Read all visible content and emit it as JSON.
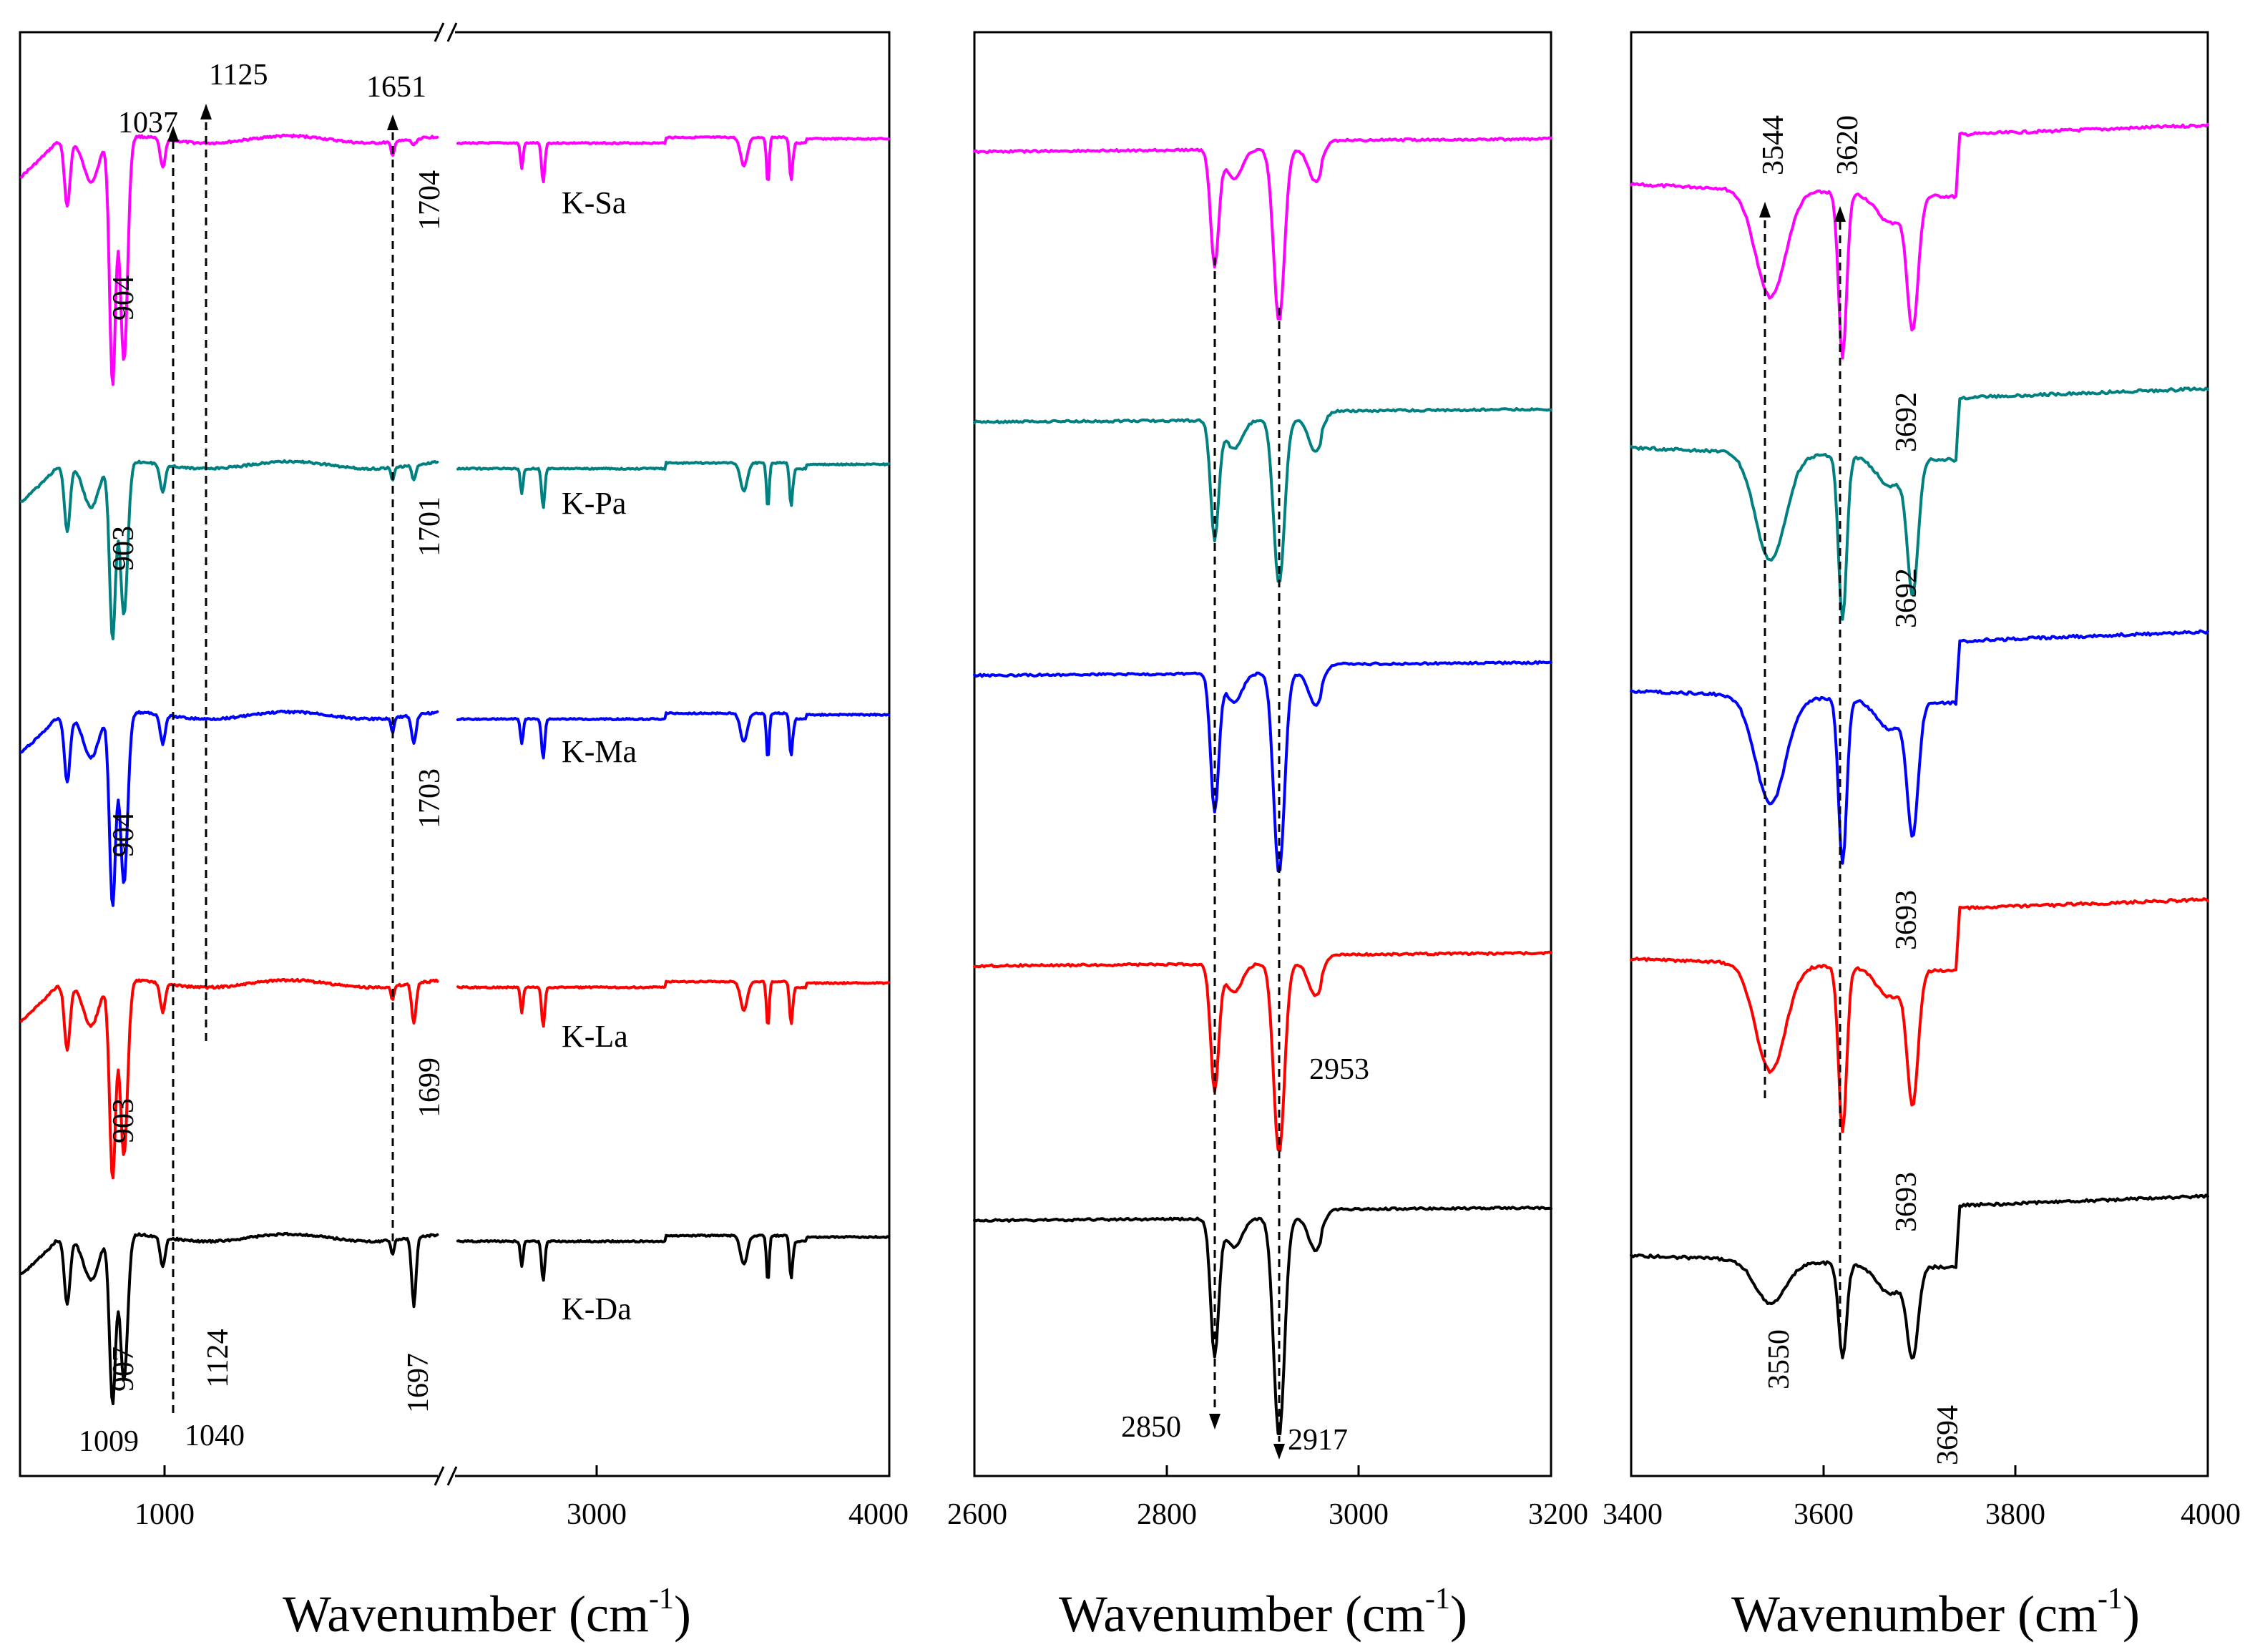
{
  "chart_data": {
    "type": "line",
    "description_units": "FTIR transmittance (arbitrary, vertically offset per sample)",
    "samples": [
      {
        "name": "K-Sa",
        "color": "#ff00ff"
      },
      {
        "name": "K-Pa",
        "color": "#008080"
      },
      {
        "name": "K-Ma",
        "color": "#0000ff"
      },
      {
        "name": "K-La",
        "color": "#ff0000"
      },
      {
        "name": "K-Da",
        "color": "#000000"
      }
    ],
    "panels": [
      {
        "id": "full",
        "xlabel": "Wavenumber (cm",
        "xlabel_sup": "-1",
        "xlabel_close": ")",
        "xlim": [
          800,
          4000
        ],
        "axis_break": [
          1750,
          2650
        ],
        "ticks": [
          "1000",
          "3000",
          "4000"
        ],
        "peak_labels": [
          {
            "text": "904",
            "sample": "K-Sa"
          },
          {
            "text": "1704",
            "sample": "K-Sa"
          },
          {
            "text": "903",
            "sample": "K-Pa"
          },
          {
            "text": "1701",
            "sample": "K-Pa"
          },
          {
            "text": "904",
            "sample": "K-Ma"
          },
          {
            "text": "1703",
            "sample": "K-Ma"
          },
          {
            "text": "903",
            "sample": "K-La"
          },
          {
            "text": "1699",
            "sample": "K-La"
          },
          {
            "text": "907",
            "sample": "K-Da"
          },
          {
            "text": "1124",
            "sample": "K-Da"
          },
          {
            "text": "1697",
            "sample": "K-Da"
          },
          {
            "text": "1009",
            "sample": "K-Da"
          },
          {
            "text": "1040",
            "sample": "K-Da"
          }
        ],
        "guide_labels": [
          "1037",
          "1125",
          "1651"
        ]
      },
      {
        "id": "ch",
        "xlabel": "Wavenumber (cm",
        "xlabel_sup": "-1",
        "xlabel_close": ")",
        "xlim": [
          2600,
          3200
        ],
        "ticks": [
          "2600",
          "2800",
          "3000",
          "3200"
        ],
        "peak_labels": [
          {
            "text": "2953",
            "sample": "K-La"
          },
          {
            "text": "2850",
            "sample": "K-Da"
          },
          {
            "text": "2917",
            "sample": "K-Da"
          }
        ]
      },
      {
        "id": "oh",
        "xlabel": "Wavenumber (cm",
        "xlabel_sup": "-1",
        "xlabel_close": ")",
        "xlim": [
          3400,
          4000
        ],
        "ticks": [
          "3400",
          "3600",
          "3800",
          "4000"
        ],
        "peak_labels": [
          {
            "text": "3692",
            "sample": "K-Sa"
          },
          {
            "text": "3692",
            "sample": "K-Pa"
          },
          {
            "text": "3693",
            "sample": "K-Ma"
          },
          {
            "text": "3693",
            "sample": "K-La"
          },
          {
            "text": "3550",
            "sample": "K-Da"
          },
          {
            "text": "3694",
            "sample": "K-Da"
          }
        ],
        "guide_labels": [
          "3544",
          "3620"
        ]
      }
    ],
    "bands_cm-1": [
      904,
      1009,
      1040,
      1124,
      1651,
      1699,
      2850,
      2917,
      2953,
      3550,
      3620,
      3694
    ]
  }
}
